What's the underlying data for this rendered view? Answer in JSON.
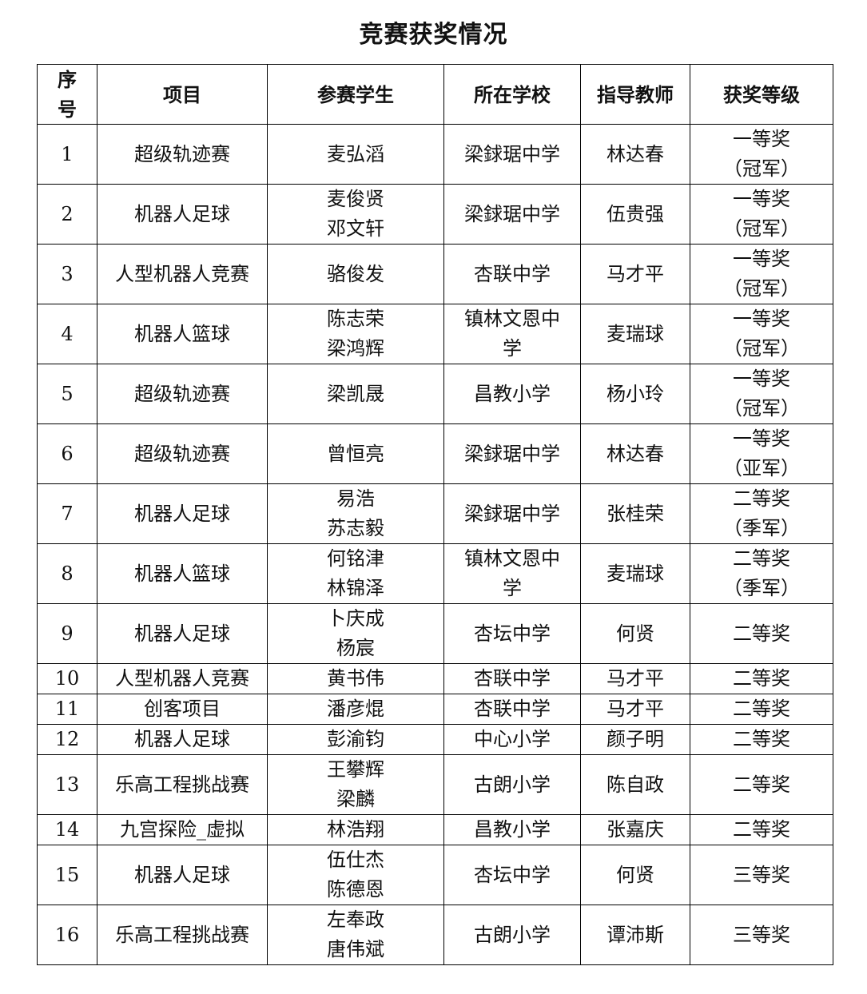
{
  "title": "竞赛获奖情况",
  "columns": [
    "序\n号",
    "项目",
    "参赛学生",
    "所在学校",
    "指导教师",
    "获奖等级"
  ],
  "rows": [
    {
      "no": "1",
      "project": "超级轨迹赛",
      "students": "麦弘滔",
      "school": "梁銶琚中学",
      "teacher": "林达春",
      "award": "一等奖\n（冠军）",
      "tall": true
    },
    {
      "no": "2",
      "project": "机器人足球",
      "students": "麦俊贤\n邓文轩",
      "school": "梁銶琚中学",
      "teacher": "伍贵强",
      "award": "一等奖\n（冠军）",
      "tall": true
    },
    {
      "no": "3",
      "project": "人型机器人竞赛",
      "students": "骆俊发",
      "school": "杏联中学",
      "teacher": "马才平",
      "award": "一等奖\n（冠军）",
      "tall": true
    },
    {
      "no": "4",
      "project": "机器人篮球",
      "students": "陈志荣\n梁鸿辉",
      "school": "镇林文恩中\n学",
      "teacher": "麦瑞球",
      "award": "一等奖\n（冠军）",
      "tall": true
    },
    {
      "no": "5",
      "project": "超级轨迹赛",
      "students": "梁凯晟",
      "school": "昌教小学",
      "teacher": "杨小玲",
      "award": "一等奖\n（冠军）",
      "tall": true
    },
    {
      "no": "6",
      "project": "超级轨迹赛",
      "students": "曾恒亮",
      "school": "梁銶琚中学",
      "teacher": "林达春",
      "award": "一等奖\n（亚军）",
      "tall": true
    },
    {
      "no": "7",
      "project": "机器人足球",
      "students": "易浩\n苏志毅",
      "school": "梁銶琚中学",
      "teacher": "张桂荣",
      "award": "二等奖\n（季军）",
      "tall": true
    },
    {
      "no": "8",
      "project": "机器人篮球",
      "students": "何铭津\n林锦泽",
      "school": "镇林文恩中\n学",
      "teacher": "麦瑞球",
      "award": "二等奖\n（季军）",
      "tall": true
    },
    {
      "no": "9",
      "project": "机器人足球",
      "students": "卜庆成\n杨宸",
      "school": "杏坛中学",
      "teacher": "何贤",
      "award": "二等奖",
      "tall": true
    },
    {
      "no": "10",
      "project": "人型机器人竞赛",
      "students": "黄书伟",
      "school": "杏联中学",
      "teacher": "马才平",
      "award": "二等奖",
      "tall": false
    },
    {
      "no": "11",
      "project": "创客项目",
      "students": "潘彦焜",
      "school": "杏联中学",
      "teacher": "马才平",
      "award": "二等奖",
      "tall": false
    },
    {
      "no": "12",
      "project": "机器人足球",
      "students": "彭渝钧",
      "school": "中心小学",
      "teacher": "颜子明",
      "award": "二等奖",
      "tall": false
    },
    {
      "no": "13",
      "project": "乐高工程挑战赛",
      "students": "王攀辉\n梁麟",
      "school": "古朗小学",
      "teacher": "陈自政",
      "award": "二等奖",
      "tall": true
    },
    {
      "no": "14",
      "project": "九宫探险_虚拟",
      "students": "林浩翔",
      "school": "昌教小学",
      "teacher": "张嘉庆",
      "award": "二等奖",
      "tall": false
    },
    {
      "no": "15",
      "project": "机器人足球",
      "students": "伍仕杰\n陈德恩",
      "school": "杏坛中学",
      "teacher": "何贤",
      "award": "三等奖",
      "tall": true
    },
    {
      "no": "16",
      "project": "乐高工程挑战赛",
      "students": "左奉政\n唐伟斌",
      "school": "古朗小学",
      "teacher": "谭沛斯",
      "award": "三等奖",
      "tall": true
    }
  ]
}
